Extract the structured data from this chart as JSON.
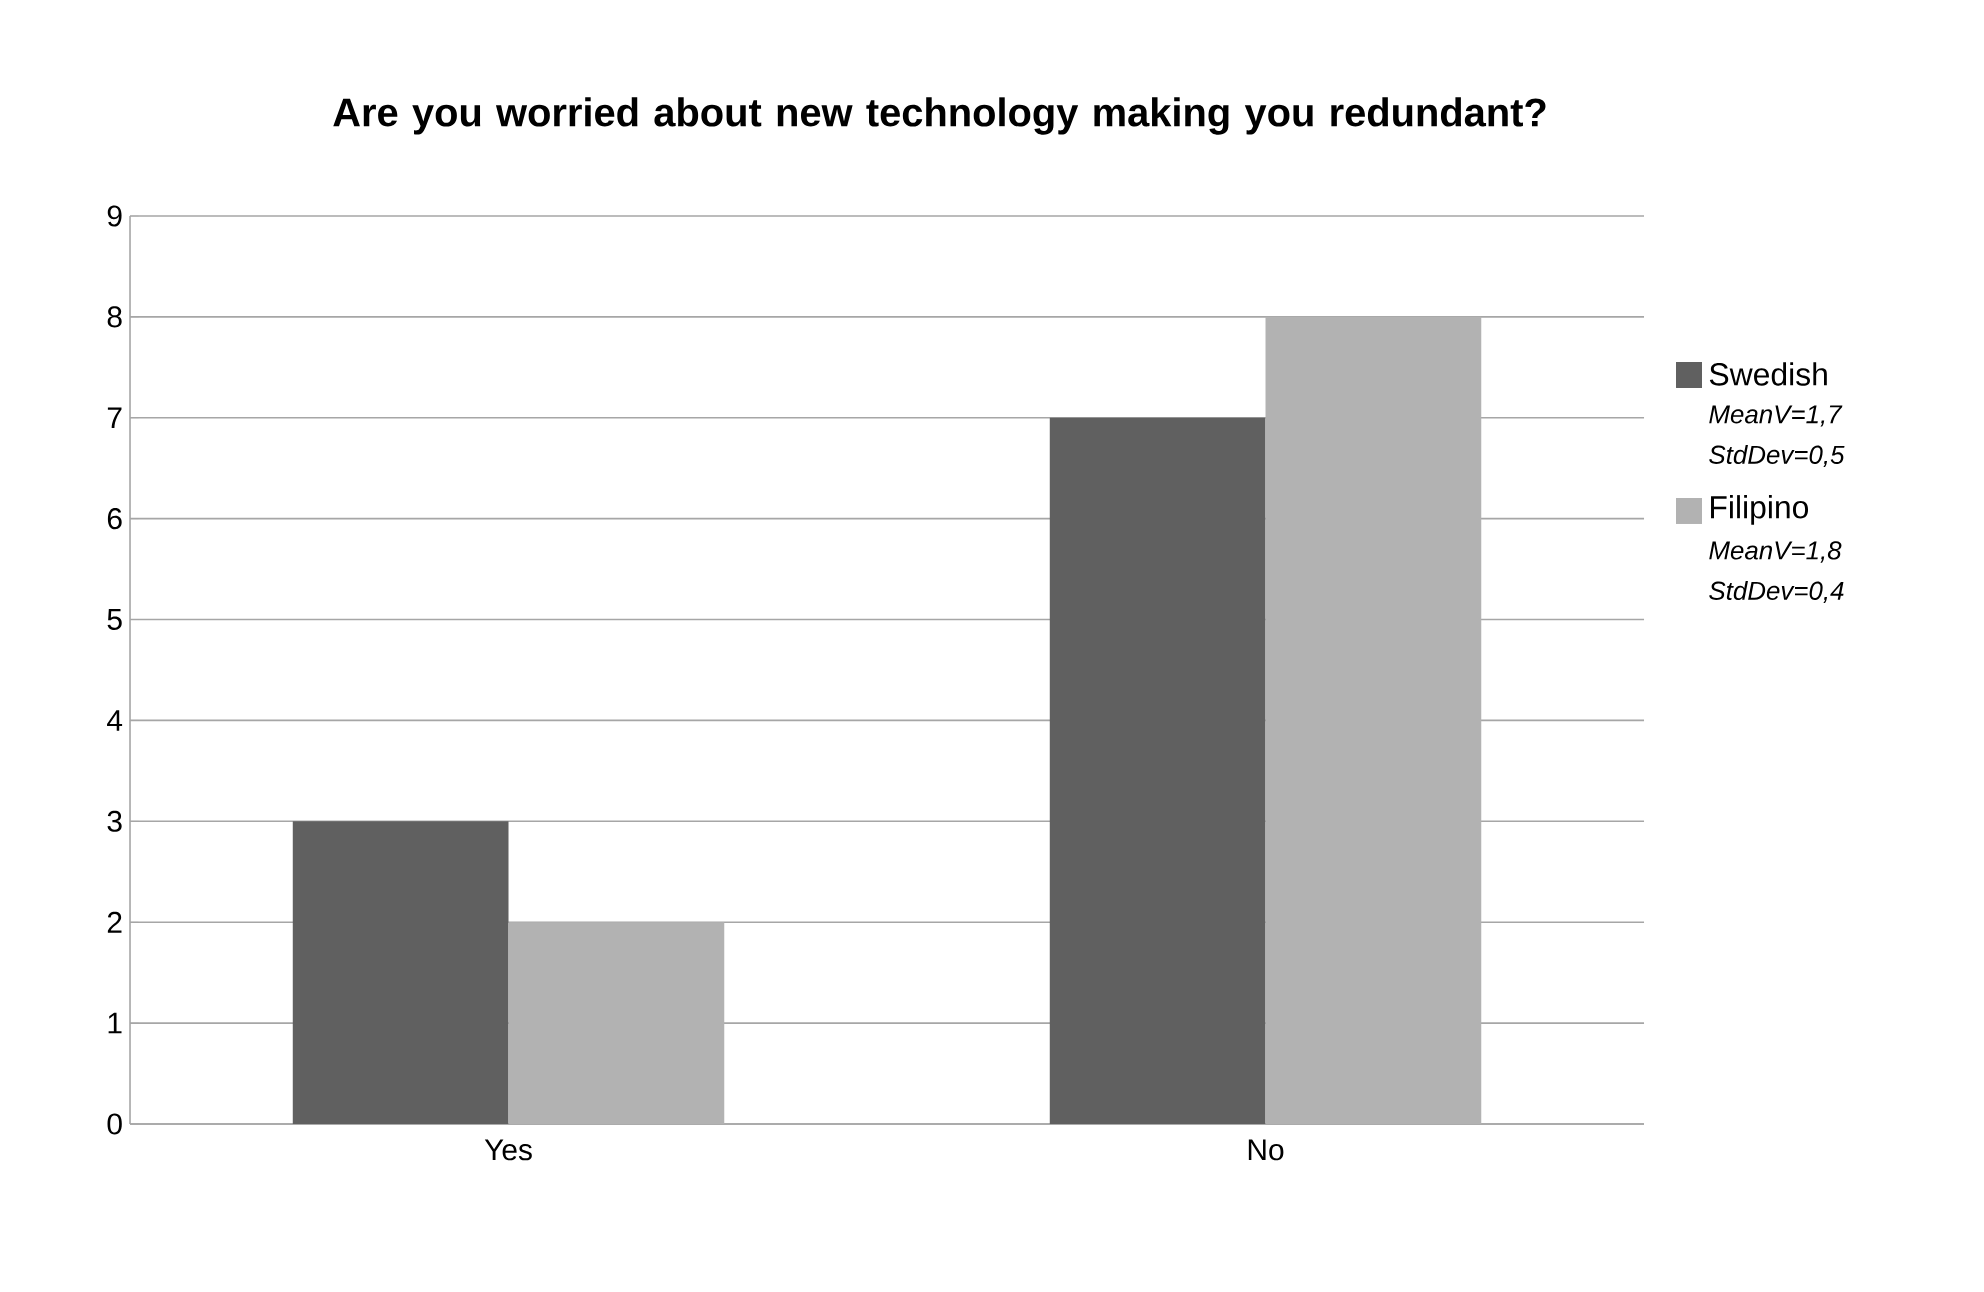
{
  "chart_data": {
    "type": "bar",
    "title": "Are you worried about new technology making you redundant?",
    "categories": [
      "Yes",
      "No"
    ],
    "series": [
      {
        "name": "Swedish",
        "color": "#606060",
        "values": [
          3,
          7
        ]
      },
      {
        "name": "Filipino",
        "color": "#b2b2b2",
        "values": [
          2,
          8
        ]
      }
    ],
    "annotations": [
      "MeanV=1,7",
      "StdDev=0,5",
      "MeanV=1,8",
      "StdDev=0,4"
    ],
    "ylim": [
      0,
      9
    ],
    "yticks": [
      0,
      1,
      2,
      3,
      4,
      5,
      6,
      7,
      8,
      9
    ],
    "grid": "y",
    "legend": "right"
  }
}
